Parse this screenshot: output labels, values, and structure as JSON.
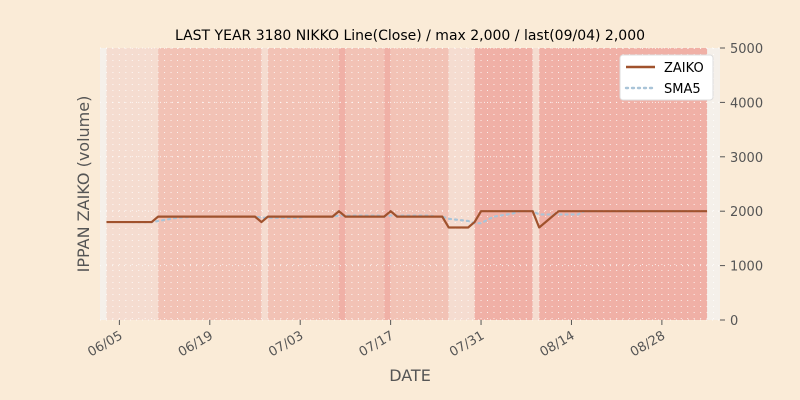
{
  "colors": {
    "figure_background": "#faebd7",
    "plot_background": "#f5f0ea",
    "zaiko_line": "#a0522d",
    "sma5_line": "#a9c4d8",
    "grid": "#ffffff",
    "band_light": "#f5dcd0",
    "band_medium": "#f2c2b5",
    "band_strong": "#f0b0a6"
  },
  "chart_data": {
    "type": "line",
    "title": "LAST YEAR 3180 NIKKO Line(Close) / max 2,000 / last(09/04) 2,000",
    "xlabel": "DATE",
    "ylabel": "IPPAN ZAIKO (volume)",
    "ylim": [
      0,
      5000
    ],
    "y_axis_side": "right",
    "yticks": [
      0,
      1000,
      2000,
      3000,
      4000,
      5000
    ],
    "xlim": [
      "06-02",
      "09-06"
    ],
    "xticks": [
      {
        "date": "06-05",
        "label": "06/05"
      },
      {
        "date": "06-19",
        "label": "06/19"
      },
      {
        "date": "07-03",
        "label": "07/03"
      },
      {
        "date": "07-17",
        "label": "07/17"
      },
      {
        "date": "07-31",
        "label": "07/31"
      },
      {
        "date": "08-14",
        "label": "08/14"
      },
      {
        "date": "08-28",
        "label": "08/28"
      }
    ],
    "grid": true,
    "legend_placement": "top-right",
    "x": [
      "06-03",
      "06-04",
      "06-05",
      "06-06",
      "06-07",
      "06-10",
      "06-11",
      "06-12",
      "06-13",
      "06-14",
      "06-17",
      "06-18",
      "06-19",
      "06-20",
      "06-21",
      "06-24",
      "06-25",
      "06-26",
      "06-27",
      "06-28",
      "07-01",
      "07-02",
      "07-03",
      "07-04",
      "07-05",
      "07-08",
      "07-09",
      "07-10",
      "07-11",
      "07-12",
      "07-15",
      "07-16",
      "07-17",
      "07-18",
      "07-19",
      "07-22",
      "07-23",
      "07-24",
      "07-25",
      "07-26",
      "07-29",
      "07-30",
      "07-31",
      "08-01",
      "08-02",
      "08-05",
      "08-06",
      "08-07",
      "08-08",
      "08-09",
      "08-12",
      "08-13",
      "08-14",
      "08-15",
      "08-16",
      "08-19",
      "08-20",
      "08-21",
      "08-22",
      "08-23",
      "08-26",
      "08-27",
      "08-28",
      "08-29",
      "08-30",
      "09-02",
      "09-03",
      "09-04"
    ],
    "series": [
      {
        "name": "ZAIKO",
        "style": "solid",
        "values": [
          1800,
          1800,
          1800,
          1800,
          1800,
          1800,
          1900,
          1900,
          1900,
          1900,
          1900,
          1900,
          1900,
          1900,
          1900,
          1900,
          1900,
          1900,
          1800,
          1900,
          1900,
          1900,
          1900,
          1900,
          1900,
          1900,
          2000,
          1900,
          1900,
          1900,
          1900,
          1900,
          2000,
          1900,
          1900,
          1900,
          1900,
          1900,
          1900,
          1700,
          1700,
          1800,
          2000,
          2000,
          2000,
          2000,
          2000,
          2000,
          2000,
          1700,
          2000,
          2000,
          2000,
          2000,
          2000,
          2000,
          2000,
          2000,
          2000,
          2000,
          2000,
          2000,
          2000,
          2000,
          2000,
          2000,
          2000,
          2000
        ]
      },
      {
        "name": "SMA5",
        "style": "dotted",
        "values": [
          null,
          null,
          null,
          null,
          1800,
          1800,
          1820,
          1840,
          1860,
          1880,
          1900,
          1900,
          1900,
          1900,
          1900,
          1900,
          1900,
          1900,
          1880,
          1880,
          1880,
          1880,
          1880,
          1900,
          1900,
          1900,
          1920,
          1920,
          1920,
          1920,
          1920,
          1900,
          1920,
          1920,
          1920,
          1920,
          1920,
          1900,
          1900,
          1860,
          1820,
          1780,
          1780,
          1840,
          1900,
          1960,
          2000,
          2000,
          2000,
          1940,
          1940,
          1940,
          1940,
          1940,
          2000,
          2000,
          2000,
          2000,
          2000,
          2000,
          2000,
          2000,
          2000,
          2000,
          2000,
          2000,
          2000,
          2000
        ]
      }
    ],
    "shaded_regions": [
      {
        "start": "06-03",
        "end": "06-11",
        "intensity": "light"
      },
      {
        "start": "06-11",
        "end": "06-27",
        "intensity": "medium"
      },
      {
        "start": "06-27",
        "end": "06-28",
        "intensity": "light"
      },
      {
        "start": "06-28",
        "end": "07-09",
        "intensity": "medium"
      },
      {
        "start": "07-09",
        "end": "07-10",
        "intensity": "strong"
      },
      {
        "start": "07-10",
        "end": "07-16",
        "intensity": "medium"
      },
      {
        "start": "07-16",
        "end": "07-17",
        "intensity": "strong"
      },
      {
        "start": "07-17",
        "end": "07-26",
        "intensity": "medium"
      },
      {
        "start": "07-26",
        "end": "07-30",
        "intensity": "light"
      },
      {
        "start": "07-30",
        "end": "08-08",
        "intensity": "strong"
      },
      {
        "start": "08-08",
        "end": "08-09",
        "intensity": "light"
      },
      {
        "start": "08-09",
        "end": "09-04",
        "intensity": "strong"
      }
    ]
  }
}
